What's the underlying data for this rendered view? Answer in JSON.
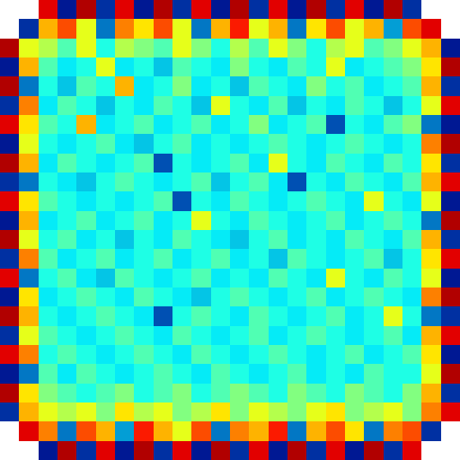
{
  "chart_data": {
    "type": "heatmap",
    "tick_labels": false,
    "grid": false,
    "zlim": [
      0,
      1
    ],
    "z": [
      [
        null,
        null,
        0.9,
        0.05,
        0.95,
        0.1,
        0.9,
        0.05,
        0.95,
        0.1,
        0.9,
        0.05,
        0.95,
        0.1,
        0.9,
        0.05,
        0.95,
        0.1,
        0.9,
        0.05,
        0.95,
        0.1,
        null,
        null
      ],
      [
        null,
        0.1,
        0.7,
        0.8,
        0.6,
        0.2,
        0.75,
        0.65,
        0.8,
        0.6,
        0.2,
        0.7,
        0.85,
        0.6,
        0.7,
        0.2,
        0.65,
        0.8,
        0.6,
        0.7,
        0.25,
        0.8,
        0.9,
        null
      ],
      [
        0.95,
        0.6,
        0.55,
        0.45,
        0.6,
        0.4,
        0.55,
        0.5,
        0.45,
        0.6,
        0.5,
        0.4,
        0.55,
        0.45,
        0.6,
        0.5,
        0.4,
        0.55,
        0.6,
        0.45,
        0.5,
        0.6,
        0.7,
        0.05
      ],
      [
        0.05,
        0.7,
        0.45,
        0.35,
        0.4,
        0.6,
        0.35,
        0.4,
        0.3,
        0.45,
        0.4,
        0.35,
        0.5,
        0.4,
        0.35,
        0.45,
        0.4,
        0.6,
        0.35,
        0.4,
        0.45,
        0.5,
        0.65,
        0.95
      ],
      [
        0.95,
        0.2,
        0.4,
        0.3,
        0.45,
        0.4,
        0.7,
        0.35,
        0.4,
        0.5,
        0.35,
        0.4,
        0.3,
        0.45,
        0.4,
        0.35,
        0.5,
        0.4,
        0.45,
        0.35,
        0.4,
        0.45,
        0.7,
        0.1
      ],
      [
        0.1,
        0.75,
        0.35,
        0.45,
        0.4,
        0.3,
        0.4,
        0.35,
        0.45,
        0.4,
        0.3,
        0.6,
        0.4,
        0.35,
        0.45,
        0.3,
        0.4,
        0.35,
        0.45,
        0.4,
        0.3,
        0.4,
        0.6,
        0.9
      ],
      [
        0.9,
        0.65,
        0.45,
        0.4,
        0.7,
        0.35,
        0.4,
        0.45,
        0.35,
        0.4,
        0.45,
        0.35,
        0.4,
        0.5,
        0.35,
        0.4,
        0.45,
        0.15,
        0.4,
        0.35,
        0.45,
        0.5,
        0.2,
        0.05
      ],
      [
        0.05,
        0.6,
        0.4,
        0.35,
        0.4,
        0.45,
        0.35,
        0.3,
        0.4,
        0.45,
        0.35,
        0.4,
        0.35,
        0.4,
        0.45,
        0.4,
        0.35,
        0.4,
        0.45,
        0.4,
        0.35,
        0.4,
        0.75,
        0.95
      ],
      [
        0.95,
        0.7,
        0.35,
        0.45,
        0.4,
        0.35,
        0.4,
        0.45,
        0.15,
        0.4,
        0.35,
        0.4,
        0.45,
        0.35,
        0.6,
        0.4,
        0.35,
        0.45,
        0.4,
        0.35,
        0.45,
        0.4,
        0.65,
        0.1
      ],
      [
        0.1,
        0.2,
        0.4,
        0.35,
        0.3,
        0.4,
        0.45,
        0.4,
        0.35,
        0.4,
        0.45,
        0.3,
        0.4,
        0.45,
        0.35,
        0.15,
        0.4,
        0.35,
        0.45,
        0.4,
        0.35,
        0.45,
        0.7,
        0.9
      ],
      [
        0.9,
        0.65,
        0.45,
        0.4,
        0.35,
        0.4,
        0.35,
        0.4,
        0.45,
        0.15,
        0.4,
        0.35,
        0.45,
        0.4,
        0.35,
        0.4,
        0.45,
        0.4,
        0.35,
        0.6,
        0.4,
        0.35,
        0.6,
        0.05
      ],
      [
        0.05,
        0.7,
        0.35,
        0.4,
        0.45,
        0.35,
        0.4,
        0.45,
        0.35,
        0.4,
        0.6,
        0.4,
        0.35,
        0.45,
        0.4,
        0.35,
        0.4,
        0.45,
        0.35,
        0.4,
        0.45,
        0.4,
        0.2,
        0.95
      ],
      [
        0.95,
        0.6,
        0.4,
        0.45,
        0.35,
        0.4,
        0.3,
        0.4,
        0.35,
        0.45,
        0.4,
        0.35,
        0.3,
        0.4,
        0.45,
        0.35,
        0.4,
        0.35,
        0.45,
        0.4,
        0.35,
        0.45,
        0.7,
        0.1
      ],
      [
        0.1,
        0.75,
        0.45,
        0.35,
        0.4,
        0.45,
        0.35,
        0.4,
        0.45,
        0.35,
        0.4,
        0.45,
        0.35,
        0.4,
        0.3,
        0.45,
        0.4,
        0.35,
        0.4,
        0.45,
        0.3,
        0.4,
        0.65,
        0.9
      ],
      [
        0.9,
        0.2,
        0.4,
        0.45,
        0.35,
        0.3,
        0.45,
        0.4,
        0.35,
        0.4,
        0.45,
        0.35,
        0.4,
        0.35,
        0.45,
        0.4,
        0.35,
        0.6,
        0.4,
        0.35,
        0.45,
        0.4,
        0.6,
        0.05
      ],
      [
        0.05,
        0.65,
        0.35,
        0.4,
        0.45,
        0.4,
        0.35,
        0.45,
        0.4,
        0.35,
        0.3,
        0.4,
        0.45,
        0.4,
        0.35,
        0.4,
        0.45,
        0.35,
        0.4,
        0.45,
        0.4,
        0.35,
        0.75,
        0.95
      ],
      [
        0.95,
        0.7,
        0.4,
        0.35,
        0.4,
        0.45,
        0.4,
        0.35,
        0.15,
        0.4,
        0.45,
        0.4,
        0.35,
        0.45,
        0.4,
        0.35,
        0.4,
        0.45,
        0.35,
        0.4,
        0.6,
        0.4,
        0.2,
        0.1
      ],
      [
        0.1,
        0.6,
        0.45,
        0.4,
        0.35,
        0.4,
        0.45,
        0.4,
        0.35,
        0.45,
        0.4,
        0.35,
        0.4,
        0.45,
        0.35,
        0.4,
        0.45,
        0.4,
        0.35,
        0.4,
        0.45,
        0.35,
        0.7,
        0.9
      ],
      [
        0.9,
        0.75,
        0.4,
        0.45,
        0.4,
        0.35,
        0.4,
        0.45,
        0.4,
        0.35,
        0.45,
        0.4,
        0.35,
        0.4,
        0.45,
        0.4,
        0.35,
        0.4,
        0.45,
        0.35,
        0.4,
        0.45,
        0.65,
        0.05
      ],
      [
        0.05,
        0.2,
        0.45,
        0.35,
        0.45,
        0.4,
        0.35,
        0.4,
        0.45,
        0.4,
        0.35,
        0.45,
        0.4,
        0.35,
        0.4,
        0.45,
        0.35,
        0.4,
        0.35,
        0.45,
        0.4,
        0.4,
        0.6,
        0.95
      ],
      [
        0.95,
        0.65,
        0.5,
        0.45,
        0.4,
        0.45,
        0.5,
        0.4,
        0.45,
        0.5,
        0.4,
        0.45,
        0.5,
        0.45,
        0.4,
        0.5,
        0.45,
        0.4,
        0.5,
        0.45,
        0.4,
        0.5,
        0.7,
        0.1
      ],
      [
        0.1,
        0.7,
        0.6,
        0.55,
        0.6,
        0.5,
        0.65,
        0.55,
        0.6,
        0.5,
        0.55,
        0.65,
        0.5,
        0.6,
        0.55,
        0.5,
        0.6,
        0.65,
        0.5,
        0.55,
        0.6,
        0.5,
        0.75,
        0.9
      ],
      [
        null,
        0.9,
        0.75,
        0.2,
        0.8,
        0.7,
        0.25,
        0.85,
        0.7,
        0.6,
        0.8,
        0.2,
        0.75,
        0.7,
        0.85,
        0.2,
        0.7,
        0.8,
        0.65,
        0.2,
        0.75,
        0.8,
        0.1,
        null
      ],
      [
        null,
        null,
        0.05,
        0.95,
        0.1,
        0.9,
        0.05,
        0.95,
        0.1,
        0.9,
        0.05,
        0.95,
        0.1,
        0.9,
        0.05,
        0.95,
        0.1,
        0.9,
        0.05,
        0.95,
        0.1,
        0.9,
        null,
        null
      ]
    ]
  }
}
